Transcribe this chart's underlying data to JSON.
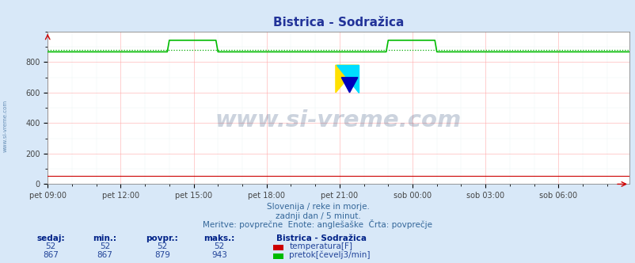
{
  "title": "Bistrica - Sodražica",
  "bg_color": "#d8e8f8",
  "plot_bg_color": "#ffffff",
  "grid_color_major": "#ffaaaa",
  "grid_color_minor": "#ddeeee",
  "xlabel_ticks": [
    "pet 09:00",
    "pet 12:00",
    "pet 15:00",
    "pet 18:00",
    "pet 21:00",
    "sob 00:00",
    "sob 03:00",
    "sob 06:00"
  ],
  "ylabel_ticks": [
    0,
    200,
    400,
    600,
    800
  ],
  "ylim": [
    0,
    1000
  ],
  "xlim": [
    0,
    287
  ],
  "temperature_color": "#cc0000",
  "flow_color": "#00bb00",
  "avg_flow_color": "#00aa00",
  "watermark_text": "www.si-vreme.com",
  "watermark_color": "#1a3a6a",
  "watermark_alpha": 0.22,
  "subtitle1": "Slovenija / reke in morje.",
  "subtitle2": "zadnji dan / 5 minut.",
  "subtitle3": "Meritve: povprečne  Enote: anglešaške  Črta: povprečje",
  "subtitle_color": "#336699",
  "legend_title": "Bistrica - Sodražica",
  "legend_label1": "temperatura[F]",
  "legend_label2": "pretok[čevelj3/min]",
  "stats_headers": [
    "sedaj:",
    "min.:",
    "povpr.:",
    "maks.:"
  ],
  "stats_temp": [
    52,
    52,
    52,
    52
  ],
  "stats_flow": [
    867,
    867,
    879,
    943
  ],
  "n_points": 288,
  "avg_flow_value": 879,
  "base_flow_value": 867,
  "peak1_start": 60,
  "peak1_end": 84,
  "peak1_value": 943,
  "peak2_start": 168,
  "peak2_end": 192,
  "peak2_value": 943,
  "temp_value": 52
}
